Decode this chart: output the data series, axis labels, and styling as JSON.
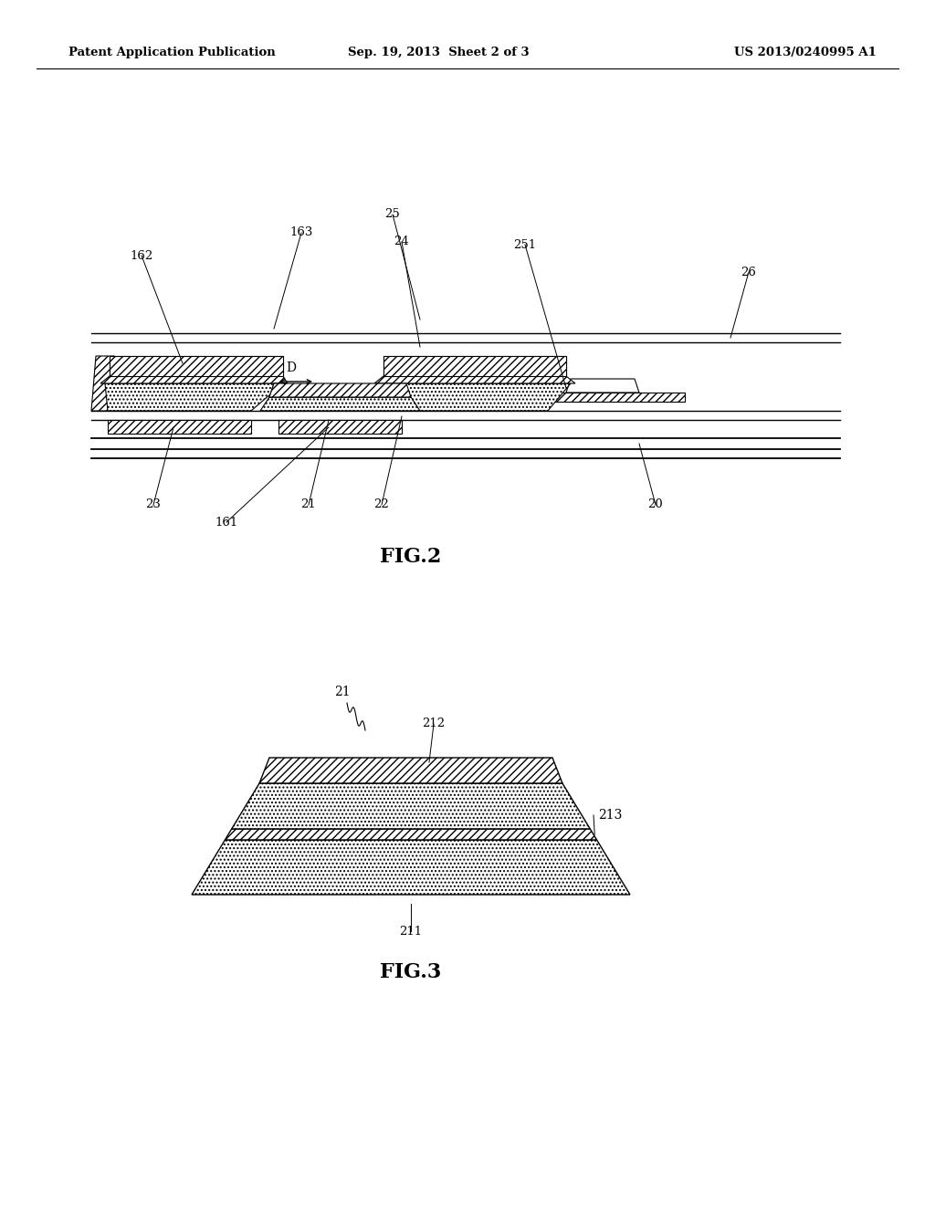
{
  "header_left": "Patent Application Publication",
  "header_mid": "Sep. 19, 2013  Sheet 2 of 3",
  "header_right": "US 2013/0240995 A1",
  "fig2_label": "FIG.2",
  "fig3_label": "FIG.3",
  "bg_color": "#ffffff"
}
